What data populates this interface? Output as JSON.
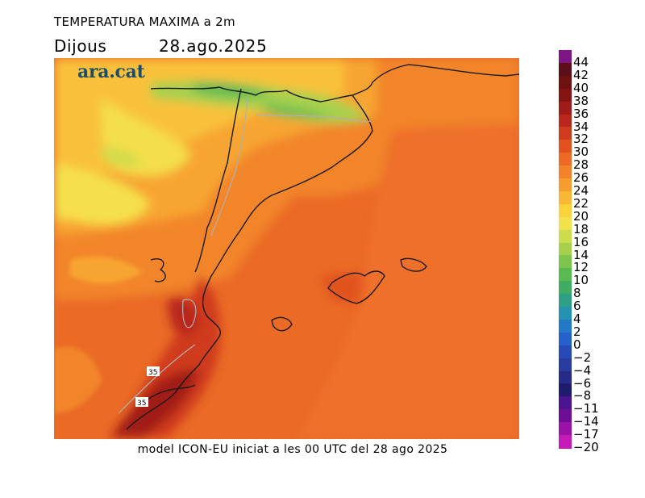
{
  "header": {
    "title": "TEMPERATURA MAXIMA a 2m",
    "day": "Dijous",
    "date": "28.ago.2025"
  },
  "logo": {
    "text": "ara.cat"
  },
  "footer": {
    "text": "model ICON-EU iniciat a les 00 UTC del 28 ago 2025"
  },
  "map": {
    "labels": [
      {
        "id": "label-35-a",
        "text": "35"
      },
      {
        "id": "label-35-b",
        "text": "35"
      }
    ]
  },
  "legend": {
    "labels": [
      "44",
      "42",
      "40",
      "38",
      "36",
      "34",
      "32",
      "30",
      "28",
      "26",
      "24",
      "22",
      "20",
      "18",
      "16",
      "14",
      "12",
      "10",
      "8",
      "6",
      "4",
      "2",
      "0",
      "−2",
      "−4",
      "−6",
      "−8",
      "−11",
      "−14",
      "−17",
      "−20"
    ],
    "colors": [
      "#7d1585",
      "#5c0f1b",
      "#6e1110",
      "#851515",
      "#a11c18",
      "#b8281c",
      "#cf3b1f",
      "#e1521f",
      "#ec6a24",
      "#f3832a",
      "#f79d2f",
      "#f9b733",
      "#fad23c",
      "#f1e24b",
      "#cbdc4c",
      "#a6d04c",
      "#7fc54d",
      "#5bb952",
      "#40ab63",
      "#2f9f86",
      "#2493b1",
      "#2379c8",
      "#2560cb",
      "#2749b6",
      "#283ba0",
      "#262b88",
      "#1f1c70",
      "#4b1390",
      "#6d0e95",
      "#9a12a8",
      "#c41ab8"
    ]
  }
}
